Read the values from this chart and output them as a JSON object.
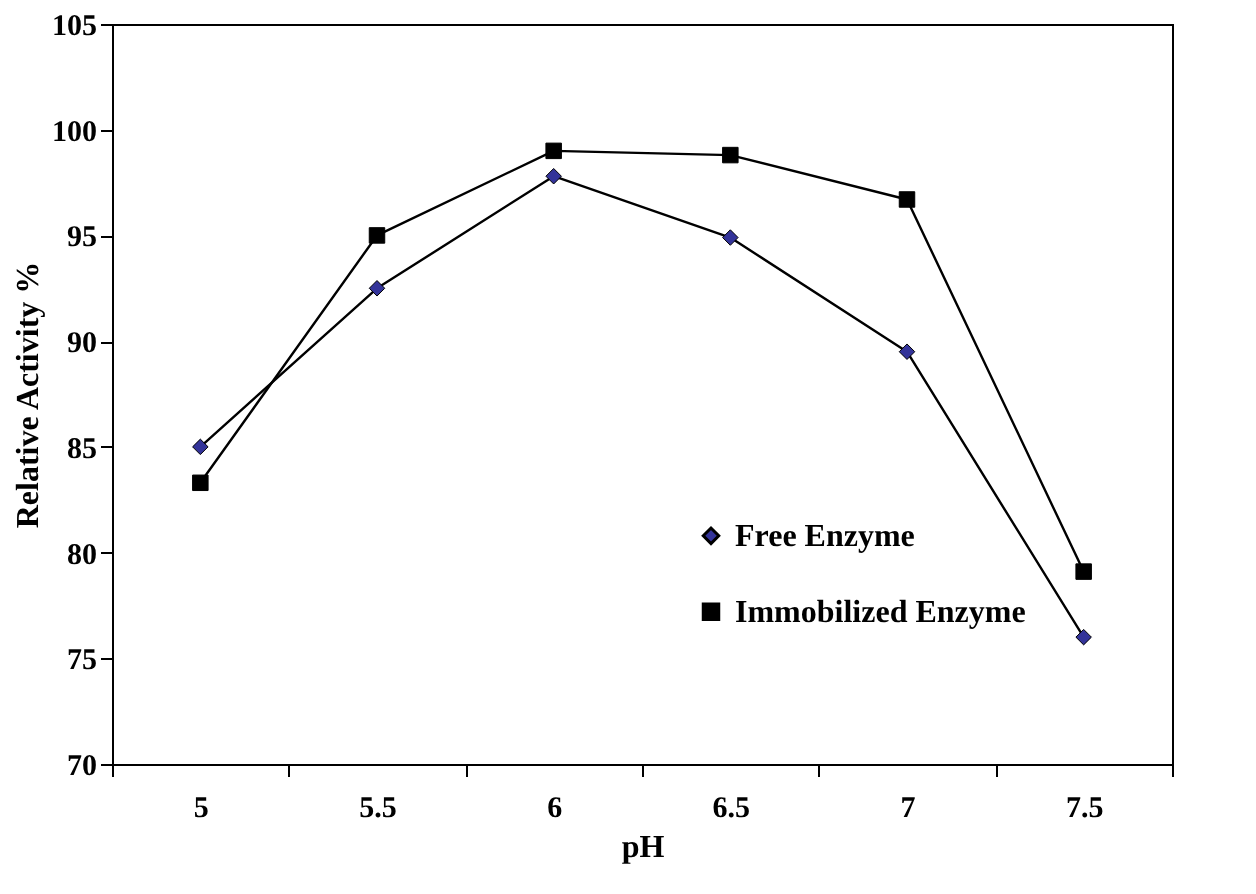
{
  "chart_data": {
    "type": "line",
    "xlabel": "pH",
    "ylabel": "Relative Activity %",
    "categories": [
      "5",
      "5.5",
      "6",
      "6.5",
      "7",
      "7.5"
    ],
    "series": [
      {
        "name": "Free Enzyme",
        "color": "#333399",
        "marker": "diamond",
        "values": [
          85.0,
          92.5,
          97.8,
          94.9,
          89.5,
          76.0
        ]
      },
      {
        "name": "Immobilized Enzyme",
        "color": "#000000",
        "marker": "square",
        "values": [
          83.3,
          95.0,
          99.0,
          98.8,
          96.7,
          79.1
        ]
      }
    ],
    "ylim": [
      70,
      105
    ],
    "yticks": [
      70,
      75,
      80,
      85,
      90,
      95,
      100,
      105
    ],
    "grid": false,
    "legend": "bottom right",
    "line_style": "solid"
  }
}
